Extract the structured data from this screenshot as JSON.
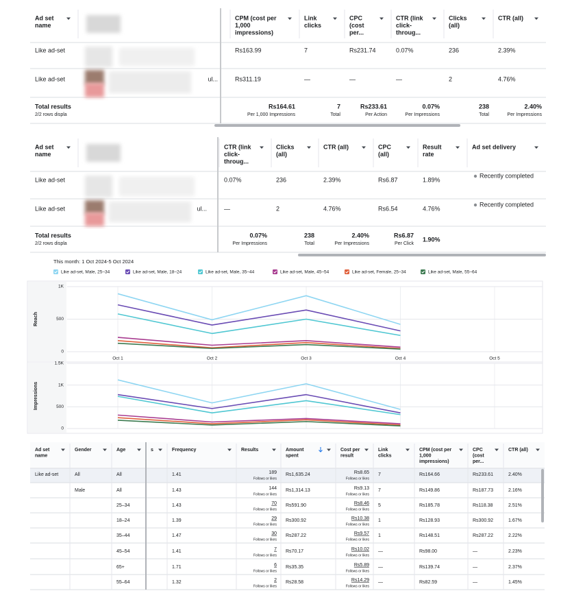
{
  "table1": {
    "columns": [
      [
        "Ad set",
        "name"
      ],
      null,
      [
        "CPM (cost per",
        "1,000",
        "impressions)"
      ],
      [
        "Link",
        "clicks"
      ],
      [
        "CPC",
        "(cost",
        "per..."
      ],
      [
        "CTR (link",
        "click-",
        "throug..."
      ],
      [
        "Clicks",
        "(all)"
      ],
      [
        "CTR (all)"
      ]
    ],
    "rows": [
      [
        "Like ad-set",
        null,
        "Rs163.99",
        "7",
        "Rs231.74",
        "0.07%",
        "236",
        "2.39%"
      ],
      [
        "Like ad-set",
        "ul...",
        "Rs311.19",
        "—",
        "—",
        "—",
        "2",
        "4.76%"
      ]
    ],
    "total": [
      {
        "text": "Total results",
        "sub": "2/2 rows displa"
      },
      null,
      {
        "text": "Rs164.61",
        "sub": "Per 1,000 Impressions"
      },
      {
        "text": "7",
        "sub": "Total"
      },
      {
        "text": "Rs233.61",
        "sub": "Per Action"
      },
      {
        "text": "0.07%",
        "sub": "Per Impressions"
      },
      {
        "text": "238",
        "sub": "Total"
      },
      {
        "text": "2.40%",
        "sub": "Per Impressions"
      }
    ]
  },
  "table2": {
    "columns": [
      [
        "Ad set",
        "name"
      ],
      null,
      [
        "CTR (link",
        "click-",
        "throug..."
      ],
      [
        "Clicks",
        "(all)"
      ],
      [
        "CTR (all)"
      ],
      [
        "CPC",
        "(all)"
      ],
      [
        "Result",
        "rate"
      ],
      [
        "Ad set delivery"
      ]
    ],
    "rows": [
      [
        "Like ad-set",
        null,
        "0.07%",
        "236",
        "2.39%",
        "Rs6.87",
        "1.89%",
        "Recently completed"
      ],
      [
        "Like ad-set",
        "ul...",
        "—",
        "2",
        "4.76%",
        "Rs6.54",
        "4.76%",
        "Recently completed"
      ]
    ],
    "total": [
      {
        "text": "Total results",
        "sub": "2/2 rows displa"
      },
      null,
      {
        "text": "0.07%",
        "sub": "Per Impressions"
      },
      {
        "text": "238",
        "sub": "Total"
      },
      {
        "text": "2.40%",
        "sub": "Per Impressions"
      },
      {
        "text": "Rs6.87",
        "sub": "Per Click"
      },
      {
        "text": "1.90%"
      },
      null
    ]
  },
  "chart_data": [
    {
      "type": "line",
      "title": "This month: 1 Oct 2024-5 Oct 2024",
      "ylabel": "Reach",
      "categories": [
        "Oct 1",
        "Oct 2",
        "Oct 3",
        "Oct 4",
        "Oct 5"
      ],
      "ylim": [
        0,
        1000
      ],
      "yticks": [
        0,
        500,
        {
          "value": 1000,
          "label": "1K"
        }
      ],
      "grid": true,
      "series": [
        {
          "name": "Like ad-set, Male, 25–34",
          "color": "#8fd6f2",
          "values": [
            890,
            490,
            860,
            420,
            null
          ]
        },
        {
          "name": "Like ad-set, Male, 18–24",
          "color": "#6a4cb4",
          "values": [
            720,
            410,
            640,
            320,
            null
          ]
        },
        {
          "name": "Like ad-set, Male, 35–44",
          "color": "#4fc7d2",
          "values": [
            580,
            280,
            500,
            250,
            null
          ]
        },
        {
          "name": "Like ad-set, Male, 45–54",
          "color": "#a83c90",
          "values": [
            220,
            100,
            170,
            70,
            null
          ]
        },
        {
          "name": "Like ad-set, Female, 25–34",
          "color": "#e0603c",
          "values": [
            170,
            60,
            140,
            50,
            null
          ]
        },
        {
          "name": "Like ad-set, Male, 55–64",
          "color": "#3c7a50",
          "values": [
            130,
            50,
            110,
            40,
            null
          ]
        }
      ]
    },
    {
      "type": "line",
      "ylabel": "Impressions",
      "ylim": [
        0,
        1500
      ],
      "yticks": [
        0,
        500,
        {
          "value": 1000,
          "label": "1K"
        },
        {
          "value": 1500,
          "label": "1.5K"
        }
      ],
      "grid": true,
      "series": [
        {
          "values": [
            1120,
            590,
            1030,
            440,
            null
          ]
        },
        {
          "values": [
            780,
            460,
            780,
            360,
            null
          ]
        },
        {
          "values": [
            740,
            360,
            640,
            320,
            null
          ]
        },
        {
          "values": [
            310,
            150,
            230,
            110,
            null
          ]
        },
        {
          "values": [
            250,
            110,
            200,
            80,
            null
          ]
        },
        {
          "values": [
            190,
            80,
            160,
            60,
            null
          ]
        }
      ]
    }
  ],
  "table3": {
    "columns": [
      [
        "Ad set",
        "name"
      ],
      [
        "Gender"
      ],
      [
        "Age"
      ],
      [
        "s"
      ],
      [
        "Frequency"
      ],
      [
        "Results"
      ],
      [
        "Amount",
        "spent"
      ],
      [
        "Cost per",
        "result"
      ],
      [
        "Link",
        "clicks"
      ],
      [
        "CPM (cost per",
        "1,000",
        "impressions)"
      ],
      [
        "CPC",
        "(cost",
        "per..."
      ],
      [
        "CTR (all)"
      ]
    ],
    "rows": [
      [
        "Like ad-set",
        "All",
        "All",
        null,
        "1.41",
        {
          "text": "189",
          "sub": "Follows or likes"
        },
        "Rs1,635.24",
        {
          "text": "Rs8.65",
          "sub": "Follows or likes"
        },
        "7",
        "Rs164.66",
        "Rs233.61",
        "2.40%"
      ],
      [
        null,
        "Male",
        "All",
        null,
        "1.43",
        {
          "text": "144",
          "sub": "Follows or likes"
        },
        "Rs1,314.13",
        {
          "text": "Rs9.13",
          "sub": "Follows or likes"
        },
        "7",
        "Rs149.86",
        "Rs187.73",
        "2.16%"
      ],
      [
        null,
        null,
        "25–34",
        null,
        "1.43",
        {
          "text": "70",
          "sub": "Follows or likes"
        },
        "Rs591.90",
        {
          "text": "Rs8.46",
          "sub": "Follows or likes"
        },
        "5",
        "Rs185.78",
        "Rs118.38",
        "2.51%"
      ],
      [
        null,
        null,
        "18–24",
        null,
        "1.39",
        {
          "text": "29",
          "sub": "Follows or likes"
        },
        "Rs300.92",
        {
          "text": "Rs10.38",
          "sub": "Follows or likes"
        },
        "1",
        "Rs128.93",
        "Rs300.92",
        "1.67%"
      ],
      [
        null,
        null,
        "35–44",
        null,
        "1.47",
        {
          "text": "30",
          "sub": "Follows or likes"
        },
        "Rs287.22",
        {
          "text": "Rs9.57",
          "sub": "Follows or likes"
        },
        "1",
        "Rs148.51",
        "Rs287.22",
        "2.22%"
      ],
      [
        null,
        null,
        "45–54",
        null,
        "1.41",
        {
          "text": "7",
          "sub": "Follows or likes"
        },
        "Rs70.17",
        {
          "text": "Rs10.02",
          "sub": "Follows or likes"
        },
        "—",
        "Rs98.00",
        "—",
        "2.23%"
      ],
      [
        null,
        null,
        "65+",
        null,
        "1.71",
        {
          "text": "6",
          "sub": "Follows or likes"
        },
        "Rs35.35",
        {
          "text": "Rs5.89",
          "sub": "Follows or likes"
        },
        "—",
        "Rs139.74",
        "—",
        "2.37%"
      ],
      [
        null,
        null,
        "55–64",
        null,
        "1.32",
        {
          "text": "2",
          "sub": "Follows or likes"
        },
        "Rs28.58",
        {
          "text": "Rs14.29",
          "sub": "Follows or likes"
        },
        "—",
        "Rs82.59",
        "—",
        "1.45%"
      ]
    ]
  }
}
